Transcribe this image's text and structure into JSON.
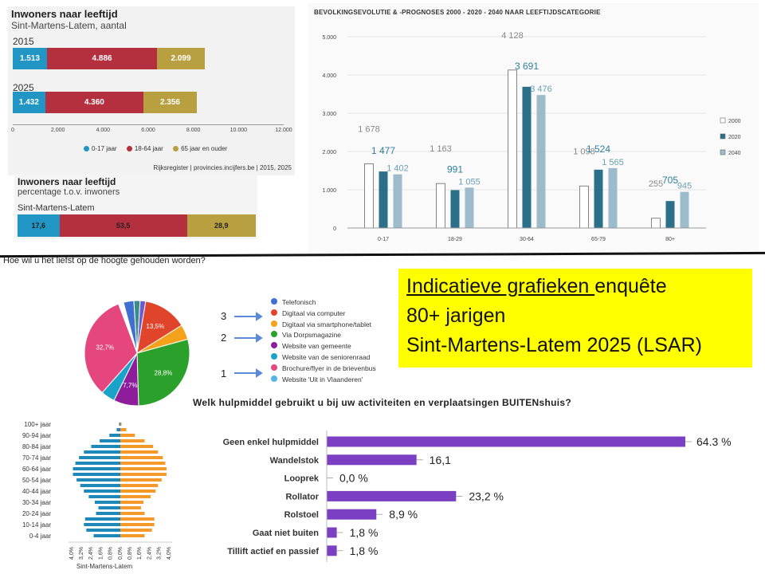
{
  "colors": {
    "young": "#2196c4",
    "mid": "#b5303f",
    "old": "#b8a040",
    "c2000": "#ffffff",
    "c2020": "#2b6f88",
    "c2040": "#9dbccb",
    "label2020": "#2f7f9a",
    "label2040": "#6a9fb5",
    "purple": "#7b3fc4",
    "pyr_blue": "#1e88b8",
    "pyr_orange": "#f39a2b",
    "yellow": "#ffff00"
  },
  "chart_data": [
    {
      "type": "bar",
      "orientation": "horizontal-stacked",
      "title": "Inwoners naar leeftijd",
      "subtitle": "Sint-Martens-Latem, aantal",
      "categories": [
        "2015",
        "2025"
      ],
      "series": [
        {
          "name": "0-17 jaar",
          "values": [
            1513,
            1432
          ],
          "labels": [
            "1.513",
            "1.432"
          ]
        },
        {
          "name": "18-64 jaar",
          "values": [
            4886,
            4360
          ],
          "labels": [
            "4.886",
            "4.360"
          ]
        },
        {
          "name": "65 jaar en ouder",
          "values": [
            2099,
            2356
          ],
          "labels": [
            "2.099",
            "2.356"
          ]
        }
      ],
      "xlim": [
        0,
        12000
      ],
      "ticks": [
        "0",
        "2.000",
        "4.000",
        "6.000",
        "8.000",
        "10.000",
        "12.000"
      ],
      "source": "Rijksregister | provincies.incijfers.be | 2015, 2025"
    },
    {
      "type": "bar",
      "orientation": "horizontal-stacked",
      "title": "Inwoners naar leeftijd",
      "subtitle": "percentage t.o.v. inwoners",
      "categories": [
        "Sint-Martens-Latem"
      ],
      "series": [
        {
          "name": "0-17 jaar",
          "values": [
            17.6
          ],
          "label": "17,6"
        },
        {
          "name": "18-64 jaar",
          "values": [
            53.5
          ],
          "label": "53,5"
        },
        {
          "name": "65 jaar en ouder",
          "values": [
            28.9
          ],
          "label": "28,9"
        }
      ]
    },
    {
      "type": "bar",
      "title": "BEVOLKINGSEVOLUTIE & -PROGNOSES 2000 - 2020 - 2040 NAAR LEEFTIJDSCATEGORIE",
      "categories": [
        "0-17",
        "18-29",
        "30-64",
        "65-79",
        "80+"
      ],
      "series": [
        {
          "name": "2000",
          "values": [
            1678,
            1163,
            4128,
            1098,
            255
          ],
          "labels": [
            "1 678",
            "1 163",
            "4 128",
            "1 098",
            "255"
          ]
        },
        {
          "name": "2020",
          "values": [
            1477,
            991,
            3691,
            1524,
            705
          ],
          "labels": [
            "1 477",
            "991",
            "3 691",
            "1 524",
            "705"
          ]
        },
        {
          "name": "2040",
          "values": [
            1402,
            1055,
            3476,
            1565,
            945
          ],
          "labels": [
            "1 402",
            "1 055",
            "3 476",
            "1 565",
            "945"
          ]
        }
      ],
      "ylim": [
        0,
        5000
      ],
      "yticks": [
        "0",
        "1.000",
        "2.000",
        "3.000",
        "4.000",
        "5.000"
      ]
    },
    {
      "type": "pie",
      "title": "Hoe wil u het liefst op de hoogte gehouden worden?",
      "slices": [
        {
          "name": "Telefonisch",
          "value": 3.2,
          "color": "#3f6fd0",
          "label": ""
        },
        {
          "name": "Digitaal via computer",
          "value": 13.5,
          "color": "#e0452b",
          "label": "13,5%"
        },
        {
          "name": "Digitaal via smartphone/tablet",
          "value": 4.6,
          "color": "#f4a21b",
          "label": ""
        },
        {
          "name": "Via Dorpsmagazine",
          "value": 28.8,
          "color": "#2ba02b",
          "label": "28,8%"
        },
        {
          "name": "Website van gemeente",
          "value": 7.7,
          "color": "#8e1d9c",
          "label": "7,7%"
        },
        {
          "name": "Website van de seniorenraad",
          "value": 4.3,
          "color": "#1aa3c8",
          "label": ""
        },
        {
          "name": "Brochure/flyer in de brievenbus",
          "value": 32.7,
          "color": "#e5467e",
          "label": "32,7%"
        },
        {
          "name": "Website 'Uit in Vlaanderen'",
          "value": 1.6,
          "color": "#56b4e9",
          "label": ""
        },
        {
          "name": "",
          "value": 1.9,
          "color": "#3b8c8c",
          "label": ""
        },
        {
          "name": "",
          "value": 1.7,
          "color": "#6a5acd",
          "label": ""
        }
      ],
      "rank_markers": [
        "3",
        "2",
        "1"
      ]
    },
    {
      "type": "bar",
      "orientation": "horizontal",
      "title": "Welk hulpmiddel gebruikt u bij uw activiteiten en verplaatsingen BUITENshuis?",
      "categories": [
        "Geen enkel hulpmiddel",
        "Wandelstok",
        "Looprek",
        "Rollator",
        "Rolstoel",
        "Gaat niet buiten",
        "Tillift actief en passief"
      ],
      "values": [
        64.3,
        16.1,
        0.0,
        23.2,
        8.9,
        1.8,
        1.8
      ],
      "labels": [
        "64.3 %",
        "16,1",
        "0,0 %",
        "23,2 %",
        "8,9 %",
        "1,8 %",
        "1,8 %"
      ]
    },
    {
      "type": "bar",
      "orientation": "population-pyramid",
      "title": "Sint-Martens-Latem",
      "categories": [
        "0-4 jaar",
        "5-9 jaar",
        "10-14 jaar",
        "15-19 jaar",
        "20-24 jaar",
        "25-29 jaar",
        "30-34 jaar",
        "35-39 jaar",
        "40-44 jaar",
        "45-49 jaar",
        "50-54 jaar",
        "55-59 jaar",
        "60-64 jaar",
        "65-69 jaar",
        "70-74 jaar",
        "75-79 jaar",
        "80-84 jaar",
        "85-89 jaar",
        "90-94 jaar",
        "95-99 jaar",
        "100+ jaar"
      ],
      "tick_labels_shown": [
        "0-4 jaar",
        "10-14 jaar",
        "20-24 jaar",
        "30-34 jaar",
        "40-44 jaar",
        "50-54 jaar",
        "60-64 jaar",
        "70-74 jaar",
        "80-84 jaar",
        "90-94 jaar",
        "100+ jaar"
      ],
      "series": [
        {
          "name": "left",
          "values": [
            2.2,
            2.8,
            3.0,
            2.9,
            2.0,
            1.8,
            2.1,
            2.6,
            3.0,
            3.3,
            3.6,
            3.9,
            3.9,
            3.7,
            3.4,
            3.0,
            2.4,
            1.7,
            0.9,
            0.3,
            0.1
          ]
        },
        {
          "name": "right",
          "values": [
            2.0,
            2.6,
            2.8,
            2.8,
            2.0,
            1.7,
            1.9,
            2.5,
            2.9,
            3.1,
            3.4,
            3.8,
            3.8,
            3.7,
            3.5,
            3.1,
            2.7,
            2.0,
            1.2,
            0.5,
            0.1
          ]
        }
      ],
      "xticks": [
        "4,0%",
        "3,2%",
        "2,4%",
        "1,6%",
        "0,8%",
        "0,0%",
        "0,8%",
        "1,6%",
        "2,4%",
        "3,2%",
        "4,0%"
      ],
      "xlim": [
        -4,
        4
      ]
    }
  ],
  "note": {
    "line1_u": "Indicatieve grafieken ",
    "line1_rest": "enquête",
    "line2": "80+ jarigen",
    "line3": "Sint-Martens-Latem 2025 (LSAR)"
  }
}
